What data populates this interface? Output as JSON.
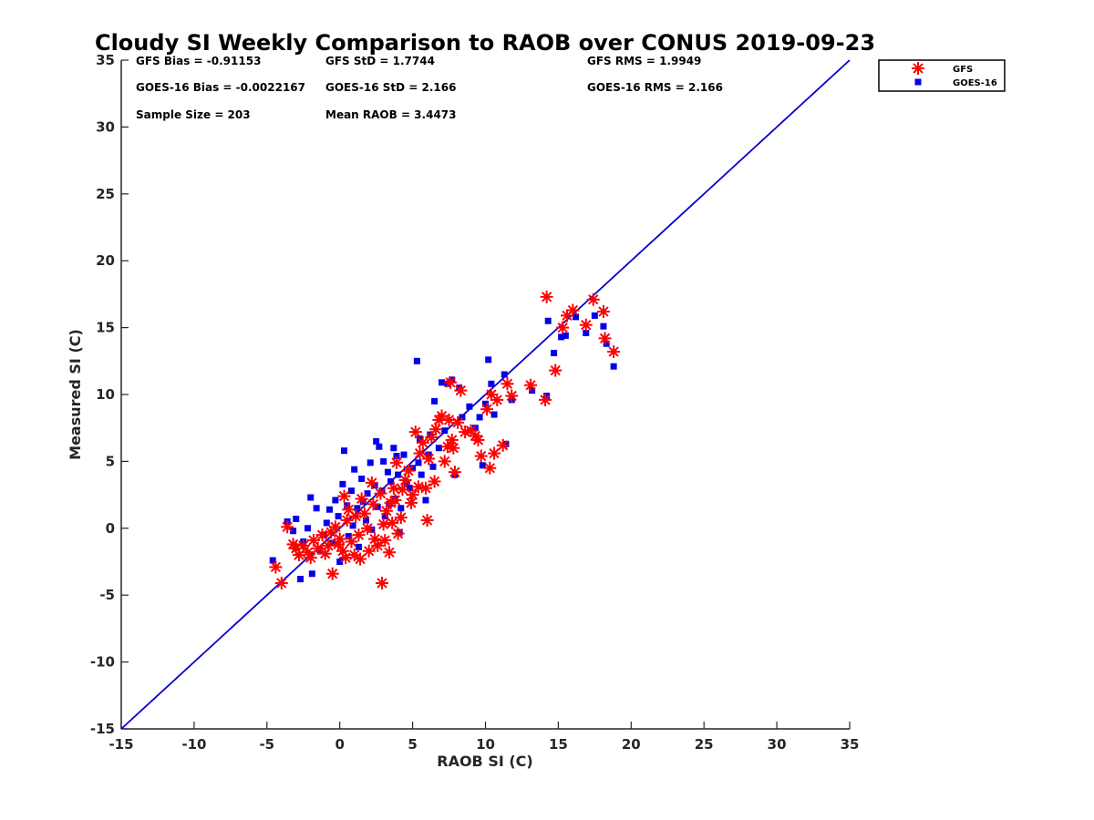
{
  "chart_data": {
    "type": "scatter",
    "title": "Cloudy SI Weekly Comparison to RAOB over CONUS 2019-09-23",
    "xlabel": "RAOB SI (C)",
    "ylabel": "Measured SI (C)",
    "xlim": [
      -15,
      35
    ],
    "ylim": [
      -15,
      35
    ],
    "xticks": [
      -15,
      -10,
      -5,
      0,
      5,
      10,
      15,
      20,
      25,
      30,
      35
    ],
    "yticks": [
      -15,
      -10,
      -5,
      0,
      5,
      10,
      15,
      20,
      25,
      30,
      35
    ],
    "grid": false,
    "legend_placement": "top-right outside",
    "stats": {
      "gfs_bias": "GFS Bias = -0.91153",
      "gfs_std": "GFS StD = 1.7744",
      "gfs_rms": "GFS RMS = 1.9949",
      "goes_bias": "GOES-16 Bias = -0.0022167",
      "goes_std": "GOES-16 StD = 2.166",
      "goes_rms": "GOES-16 RMS = 2.166",
      "sample_size": "Sample Size = 203",
      "mean_raob": "Mean RAOB = 3.4473"
    },
    "reference_line": {
      "name": "1:1 line",
      "color": "#0000cc",
      "points": [
        [
          -15,
          -15
        ],
        [
          35,
          35
        ]
      ]
    },
    "series": [
      {
        "name": "GFS",
        "marker": "asterisk",
        "color": "#ff0000",
        "points": [
          [
            -4.4,
            -2.9
          ],
          [
            -4.0,
            -4.1
          ],
          [
            -3.6,
            0.1
          ],
          [
            -3.2,
            -1.2
          ],
          [
            -3.0,
            -1.5
          ],
          [
            -2.8,
            -2.0
          ],
          [
            -2.5,
            -1.3
          ],
          [
            -2.2,
            -1.8
          ],
          [
            -2.0,
            -2.2
          ],
          [
            -1.8,
            -0.9
          ],
          [
            -1.5,
            -1.5
          ],
          [
            -1.2,
            -0.5
          ],
          [
            -1.0,
            -1.9
          ],
          [
            -0.8,
            -1.3
          ],
          [
            -0.6,
            -0.3
          ],
          [
            -0.5,
            -3.4
          ],
          [
            -0.3,
            0.1
          ],
          [
            -0.1,
            -1.2
          ],
          [
            0.0,
            -0.8
          ],
          [
            0.2,
            -1.7
          ],
          [
            0.3,
            2.4
          ],
          [
            0.4,
            -2.2
          ],
          [
            0.5,
            0.6
          ],
          [
            0.6,
            1.4
          ],
          [
            0.8,
            -1.0
          ],
          [
            1.0,
            -2.0
          ],
          [
            1.1,
            0.9
          ],
          [
            1.3,
            -0.5
          ],
          [
            1.4,
            -2.3
          ],
          [
            1.5,
            2.2
          ],
          [
            1.7,
            1.1
          ],
          [
            1.9,
            0.0
          ],
          [
            2.0,
            -1.7
          ],
          [
            2.2,
            3.4
          ],
          [
            2.3,
            1.8
          ],
          [
            2.4,
            -0.8
          ],
          [
            2.6,
            -1.3
          ],
          [
            2.8,
            2.6
          ],
          [
            2.9,
            -4.1
          ],
          [
            3.0,
            0.3
          ],
          [
            3.1,
            -0.9
          ],
          [
            3.2,
            1.3
          ],
          [
            3.4,
            -1.8
          ],
          [
            3.5,
            1.9
          ],
          [
            3.6,
            0.4
          ],
          [
            3.7,
            3.0
          ],
          [
            3.8,
            2.1
          ],
          [
            3.9,
            4.9
          ],
          [
            4.0,
            -0.4
          ],
          [
            4.2,
            0.8
          ],
          [
            4.3,
            2.9
          ],
          [
            4.5,
            3.6
          ],
          [
            4.7,
            4.3
          ],
          [
            4.9,
            1.9
          ],
          [
            5.0,
            2.5
          ],
          [
            5.2,
            7.2
          ],
          [
            5.4,
            3.1
          ],
          [
            5.5,
            5.6
          ],
          [
            5.7,
            6.4
          ],
          [
            5.9,
            3.0
          ],
          [
            6.0,
            0.6
          ],
          [
            6.1,
            5.2
          ],
          [
            6.3,
            6.8
          ],
          [
            6.5,
            3.5
          ],
          [
            6.6,
            7.4
          ],
          [
            6.8,
            8.1
          ],
          [
            7.0,
            8.4
          ],
          [
            7.2,
            5.0
          ],
          [
            7.4,
            6.1
          ],
          [
            7.5,
            8.1
          ],
          [
            7.6,
            10.9
          ],
          [
            7.7,
            6.6
          ],
          [
            7.8,
            6.0
          ],
          [
            7.9,
            4.2
          ],
          [
            8.1,
            7.9
          ],
          [
            8.3,
            10.3
          ],
          [
            8.6,
            7.2
          ],
          [
            9.0,
            7.3
          ],
          [
            9.3,
            6.9
          ],
          [
            9.5,
            6.6
          ],
          [
            9.7,
            5.4
          ],
          [
            10.1,
            8.9
          ],
          [
            10.3,
            4.5
          ],
          [
            10.4,
            10.0
          ],
          [
            10.6,
            5.6
          ],
          [
            10.8,
            9.6
          ],
          [
            11.2,
            6.2
          ],
          [
            11.5,
            10.8
          ],
          [
            11.8,
            9.9
          ],
          [
            13.1,
            10.7
          ],
          [
            14.1,
            9.6
          ],
          [
            14.2,
            17.3
          ],
          [
            14.8,
            11.8
          ],
          [
            15.3,
            15.0
          ],
          [
            15.6,
            15.9
          ],
          [
            16.0,
            16.3
          ],
          [
            16.9,
            15.2
          ],
          [
            17.4,
            17.1
          ],
          [
            18.1,
            16.2
          ],
          [
            18.2,
            14.2
          ],
          [
            18.8,
            13.2
          ]
        ]
      },
      {
        "name": "GOES-16",
        "marker": "square",
        "color": "#0000ee",
        "points": [
          [
            -4.6,
            -2.4
          ],
          [
            -3.6,
            0.5
          ],
          [
            -3.2,
            -0.2
          ],
          [
            -3.0,
            0.7
          ],
          [
            -2.7,
            -3.8
          ],
          [
            -2.5,
            -1.0
          ],
          [
            -2.2,
            0.0
          ],
          [
            -2.0,
            2.3
          ],
          [
            -1.9,
            -3.4
          ],
          [
            -1.6,
            1.5
          ],
          [
            -1.4,
            -1.6
          ],
          [
            -1.1,
            -0.5
          ],
          [
            -0.9,
            0.4
          ],
          [
            -0.7,
            1.4
          ],
          [
            -0.5,
            -1.1
          ],
          [
            -0.3,
            2.1
          ],
          [
            -0.1,
            0.9
          ],
          [
            0.0,
            -2.5
          ],
          [
            0.2,
            3.3
          ],
          [
            0.3,
            5.8
          ],
          [
            0.5,
            1.7
          ],
          [
            0.6,
            -0.6
          ],
          [
            0.8,
            2.8
          ],
          [
            0.9,
            0.2
          ],
          [
            1.0,
            4.4
          ],
          [
            1.2,
            1.5
          ],
          [
            1.3,
            -1.4
          ],
          [
            1.5,
            3.7
          ],
          [
            1.6,
            2.0
          ],
          [
            1.8,
            0.6
          ],
          [
            1.9,
            2.6
          ],
          [
            2.1,
            4.9
          ],
          [
            2.2,
            -0.1
          ],
          [
            2.4,
            3.2
          ],
          [
            2.5,
            6.5
          ],
          [
            2.6,
            1.6
          ],
          [
            2.7,
            6.1
          ],
          [
            2.9,
            2.8
          ],
          [
            3.0,
            5.0
          ],
          [
            3.1,
            0.9
          ],
          [
            3.3,
            4.2
          ],
          [
            3.4,
            1.8
          ],
          [
            3.5,
            3.5
          ],
          [
            3.7,
            6.0
          ],
          [
            3.8,
            2.2
          ],
          [
            3.9,
            5.4
          ],
          [
            4.0,
            4.0
          ],
          [
            4.1,
            -0.3
          ],
          [
            4.2,
            1.5
          ],
          [
            4.4,
            5.5
          ],
          [
            4.6,
            3.3
          ],
          [
            4.8,
            3.0
          ],
          [
            5.0,
            4.5
          ],
          [
            5.3,
            12.5
          ],
          [
            5.4,
            4.9
          ],
          [
            5.5,
            6.7
          ],
          [
            5.6,
            4.0
          ],
          [
            5.9,
            2.1
          ],
          [
            6.1,
            5.5
          ],
          [
            6.2,
            7.0
          ],
          [
            6.4,
            4.6
          ],
          [
            6.5,
            9.5
          ],
          [
            6.8,
            6.0
          ],
          [
            7.0,
            10.9
          ],
          [
            7.2,
            7.3
          ],
          [
            7.4,
            10.8
          ],
          [
            7.7,
            11.1
          ],
          [
            7.9,
            4.0
          ],
          [
            8.2,
            10.5
          ],
          [
            8.4,
            8.3
          ],
          [
            8.9,
            9.1
          ],
          [
            9.3,
            7.5
          ],
          [
            9.6,
            8.3
          ],
          [
            9.8,
            4.7
          ],
          [
            10.0,
            9.3
          ],
          [
            10.2,
            12.6
          ],
          [
            10.4,
            10.8
          ],
          [
            10.6,
            8.5
          ],
          [
            11.3,
            11.5
          ],
          [
            11.4,
            6.3
          ],
          [
            11.8,
            9.6
          ],
          [
            13.2,
            10.3
          ],
          [
            14.2,
            9.9
          ],
          [
            14.3,
            15.5
          ],
          [
            14.7,
            13.1
          ],
          [
            15.2,
            14.3
          ],
          [
            15.5,
            14.4
          ],
          [
            16.2,
            15.8
          ],
          [
            16.9,
            14.6
          ],
          [
            17.5,
            15.9
          ],
          [
            18.1,
            15.1
          ],
          [
            18.3,
            13.8
          ],
          [
            18.8,
            12.1
          ]
        ]
      }
    ]
  }
}
